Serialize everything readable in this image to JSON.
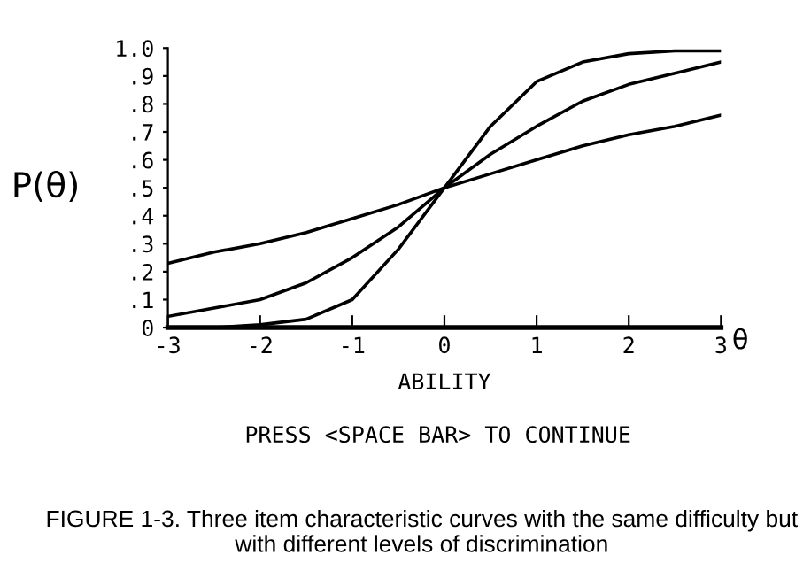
{
  "chart_data": {
    "type": "line",
    "xlabel": "ABILITY",
    "ylabel": "P(θ)",
    "x": [
      -3,
      -2.5,
      -2,
      -1.5,
      -1,
      -0.5,
      0,
      0.5,
      1,
      1.5,
      2,
      2.5,
      3
    ],
    "series": [
      {
        "color": "#000000",
        "values": [
          0.23,
          0.27,
          0.3,
          0.34,
          0.39,
          0.44,
          0.5,
          0.55,
          0.6,
          0.65,
          0.69,
          0.72,
          0.76
        ]
      },
      {
        "color": "#000000",
        "values": [
          0.04,
          0.07,
          0.1,
          0.16,
          0.25,
          0.36,
          0.5,
          0.62,
          0.72,
          0.81,
          0.87,
          0.91,
          0.95
        ]
      },
      {
        "color": "#000000",
        "values": [
          0.0,
          0.0,
          0.01,
          0.03,
          0.1,
          0.28,
          0.5,
          0.72,
          0.88,
          0.95,
          0.98,
          0.99,
          0.99
        ]
      }
    ],
    "xlim": [
      -3,
      3
    ],
    "ylim": [
      0,
      1
    ],
    "xticks": [
      -3,
      -2,
      -1,
      0,
      1,
      2,
      3
    ],
    "yticks": [
      {
        "value": 0,
        "label": "0"
      },
      {
        "value": 0.1,
        "label": ".1"
      },
      {
        "value": 0.2,
        "label": ".2"
      },
      {
        "value": 0.3,
        "label": ".3"
      },
      {
        "value": 0.4,
        "label": ".4"
      },
      {
        "value": 0.5,
        "label": ".5"
      },
      {
        "value": 0.6,
        "label": ".6"
      },
      {
        "value": 0.7,
        "label": ".7"
      },
      {
        "value": 0.8,
        "label": ".8"
      },
      {
        "value": 0.9,
        "label": ".9"
      },
      {
        "value": 1,
        "label": "1.0"
      }
    ],
    "grid": false,
    "legend": false,
    "marker": "none",
    "line_style": "solid",
    "annotations": [
      "θ",
      "PRESS <SPACE BAR> TO CONTINUE",
      "FIGURE 1-3. Three item characteristic curves with the same difficulty but with different levels of discrimination"
    ]
  }
}
